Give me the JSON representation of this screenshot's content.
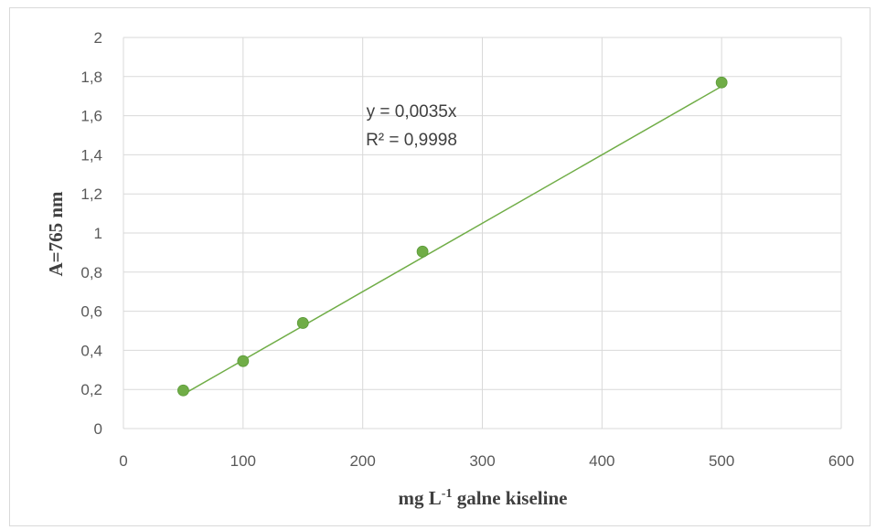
{
  "chart_data": {
    "type": "scatter",
    "xlabel": "mg L",
    "xlabel_sup": "-1",
    "xlabel_rest": " galne kiseline",
    "ylabel": "A=765 nm",
    "xlim": [
      0,
      600
    ],
    "ylim": [
      0,
      2
    ],
    "x_ticks": [
      "0",
      "100",
      "200",
      "300",
      "400",
      "500",
      "600"
    ],
    "y_ticks": [
      "0",
      "0,2",
      "0,4",
      "0,6",
      "0,8",
      "1",
      "1,2",
      "1,4",
      "1,6",
      "1,8",
      "2"
    ],
    "grid": true,
    "series": [
      {
        "x": [
          50,
          100,
          150,
          250,
          500
        ],
        "y": [
          0.195,
          0.345,
          0.54,
          0.905,
          1.77
        ],
        "color": "#70ad47"
      }
    ],
    "trendline": {
      "type": "linear",
      "slope": 0.0035,
      "intercept": 0,
      "color": "#70ad47"
    },
    "annotations": {
      "equation": "y = 0,0035x",
      "r_squared": "R² = 0,9998"
    }
  }
}
